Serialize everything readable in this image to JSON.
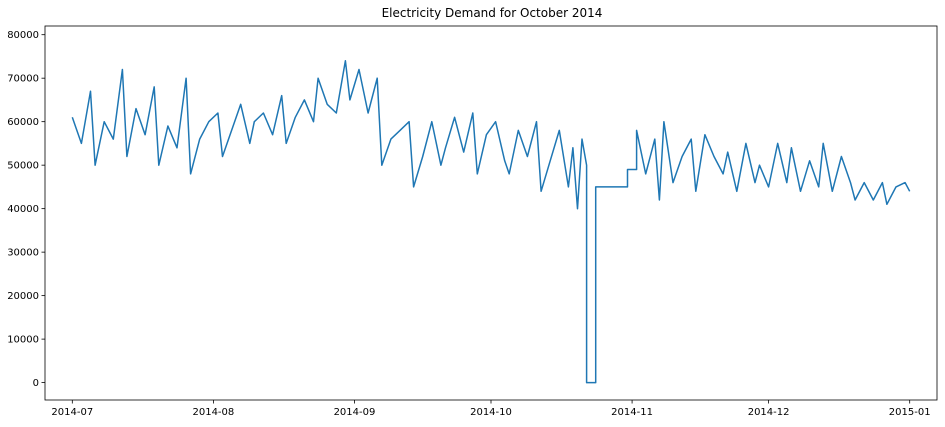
{
  "chart_data": {
    "type": "line",
    "title": "Electricity Demand for October 2014",
    "xlabel": "",
    "ylabel": "",
    "line_color": "#1f77b4",
    "grid": false,
    "legend": "none",
    "xlim": [
      "2014-06-25",
      "2015-01-07"
    ],
    "ylim": [
      -4000,
      82000
    ],
    "x_ticks": [
      "2014-07",
      "2014-08",
      "2014-09",
      "2014-10",
      "2014-11",
      "2014-12",
      "2015-01"
    ],
    "y_ticks": [
      0,
      10000,
      20000,
      30000,
      40000,
      50000,
      60000,
      70000,
      80000
    ],
    "series": [
      {
        "x": [
          "2014-07-01",
          "2014-07-03",
          "2014-07-05",
          "2014-07-06",
          "2014-07-08",
          "2014-07-10",
          "2014-07-12",
          "2014-07-13",
          "2014-07-15",
          "2014-07-17",
          "2014-07-19",
          "2014-07-20",
          "2014-07-22",
          "2014-07-24",
          "2014-07-26",
          "2014-07-27",
          "2014-07-29",
          "2014-07-31",
          "2014-08-02",
          "2014-08-03",
          "2014-08-05",
          "2014-08-07",
          "2014-08-09",
          "2014-08-10",
          "2014-08-12",
          "2014-08-14",
          "2014-08-16",
          "2014-08-17",
          "2014-08-19",
          "2014-08-21",
          "2014-08-23",
          "2014-08-24",
          "2014-08-26",
          "2014-08-28",
          "2014-08-30",
          "2014-08-31",
          "2014-09-02",
          "2014-09-04",
          "2014-09-06",
          "2014-09-07",
          "2014-09-09",
          "2014-09-11",
          "2014-09-13",
          "2014-09-14",
          "2014-09-16",
          "2014-09-18",
          "2014-09-20",
          "2014-09-21",
          "2014-09-23",
          "2014-09-25",
          "2014-09-27",
          "2014-09-28",
          "2014-09-30",
          "2014-10-02",
          "2014-10-04",
          "2014-10-05",
          "2014-10-07",
          "2014-10-09",
          "2014-10-11",
          "2014-10-12",
          "2014-10-14",
          "2014-10-16",
          "2014-10-18",
          "2014-10-19",
          "2014-10-20",
          "2014-10-21",
          "2014-10-22",
          "2014-10-22",
          "2014-10-24",
          "2014-10-24",
          "2014-10-31",
          "2014-10-31",
          "2014-11-02",
          "2014-11-02",
          "2014-11-04",
          "2014-11-06",
          "2014-11-07",
          "2014-11-08",
          "2014-11-10",
          "2014-11-12",
          "2014-11-14",
          "2014-11-15",
          "2014-11-17",
          "2014-11-19",
          "2014-11-21",
          "2014-11-22",
          "2014-11-24",
          "2014-11-26",
          "2014-11-28",
          "2014-11-29",
          "2014-12-01",
          "2014-12-03",
          "2014-12-05",
          "2014-12-06",
          "2014-12-08",
          "2014-12-10",
          "2014-12-12",
          "2014-12-13",
          "2014-12-15",
          "2014-12-17",
          "2014-12-19",
          "2014-12-20",
          "2014-12-22",
          "2014-12-24",
          "2014-12-26",
          "2014-12-27",
          "2014-12-29",
          "2014-12-31",
          "2015-01-01"
        ],
        "y": [
          61000,
          55000,
          67000,
          50000,
          60000,
          56000,
          72000,
          52000,
          63000,
          57000,
          68000,
          50000,
          59000,
          54000,
          70000,
          48000,
          56000,
          60000,
          62000,
          52000,
          58000,
          64000,
          55000,
          60000,
          62000,
          57000,
          66000,
          55000,
          61000,
          65000,
          60000,
          70000,
          64000,
          62000,
          74000,
          65000,
          72000,
          62000,
          70000,
          50000,
          56000,
          58000,
          60000,
          45000,
          52000,
          60000,
          50000,
          54000,
          61000,
          53000,
          62000,
          48000,
          57000,
          60000,
          51000,
          48000,
          58000,
          52000,
          60000,
          44000,
          51000,
          58000,
          45000,
          54000,
          40000,
          56000,
          50000,
          0,
          0,
          45000,
          45000,
          49000,
          49000,
          58000,
          48000,
          56000,
          42000,
          60000,
          46000,
          52000,
          56000,
          44000,
          57000,
          52000,
          48000,
          53000,
          44000,
          55000,
          46000,
          50000,
          45000,
          55000,
          46000,
          54000,
          44000,
          51000,
          45000,
          55000,
          44000,
          52000,
          46000,
          42000,
          46000,
          42000,
          46000,
          41000,
          45000,
          46000,
          44000
        ]
      }
    ]
  }
}
